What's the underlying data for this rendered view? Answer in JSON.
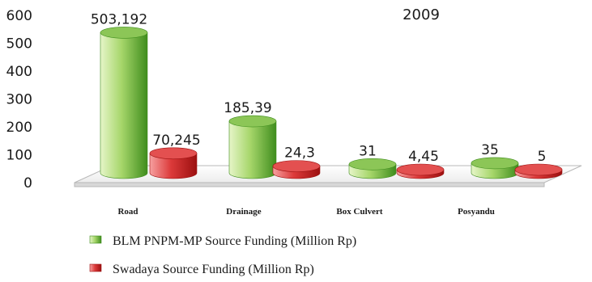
{
  "chart_data": {
    "type": "bar",
    "title": "2009",
    "categories": [
      "Road",
      "Drainage",
      "Box Culvert",
      "Posyandu"
    ],
    "series": [
      {
        "name": "BLM PNPM-MP Source Funding (Million Rp)",
        "color": "#5aa02c",
        "values": [
          503.192,
          185.39,
          31,
          35
        ],
        "labels": [
          "503,192",
          "185,39",
          "31",
          "35"
        ]
      },
      {
        "name": "Swadaya Source Funding (Million Rp)",
        "color": "#cc1f1f",
        "values": [
          70.245,
          24.3,
          4.45,
          5
        ],
        "labels": [
          "70,245",
          "24,3",
          "4,45",
          "5"
        ]
      }
    ],
    "yticks": [
      "0",
      "100",
      "200",
      "300",
      "400",
      "500",
      "600"
    ],
    "ylim": [
      0,
      600
    ],
    "legend_position": "bottom",
    "grid": false
  }
}
